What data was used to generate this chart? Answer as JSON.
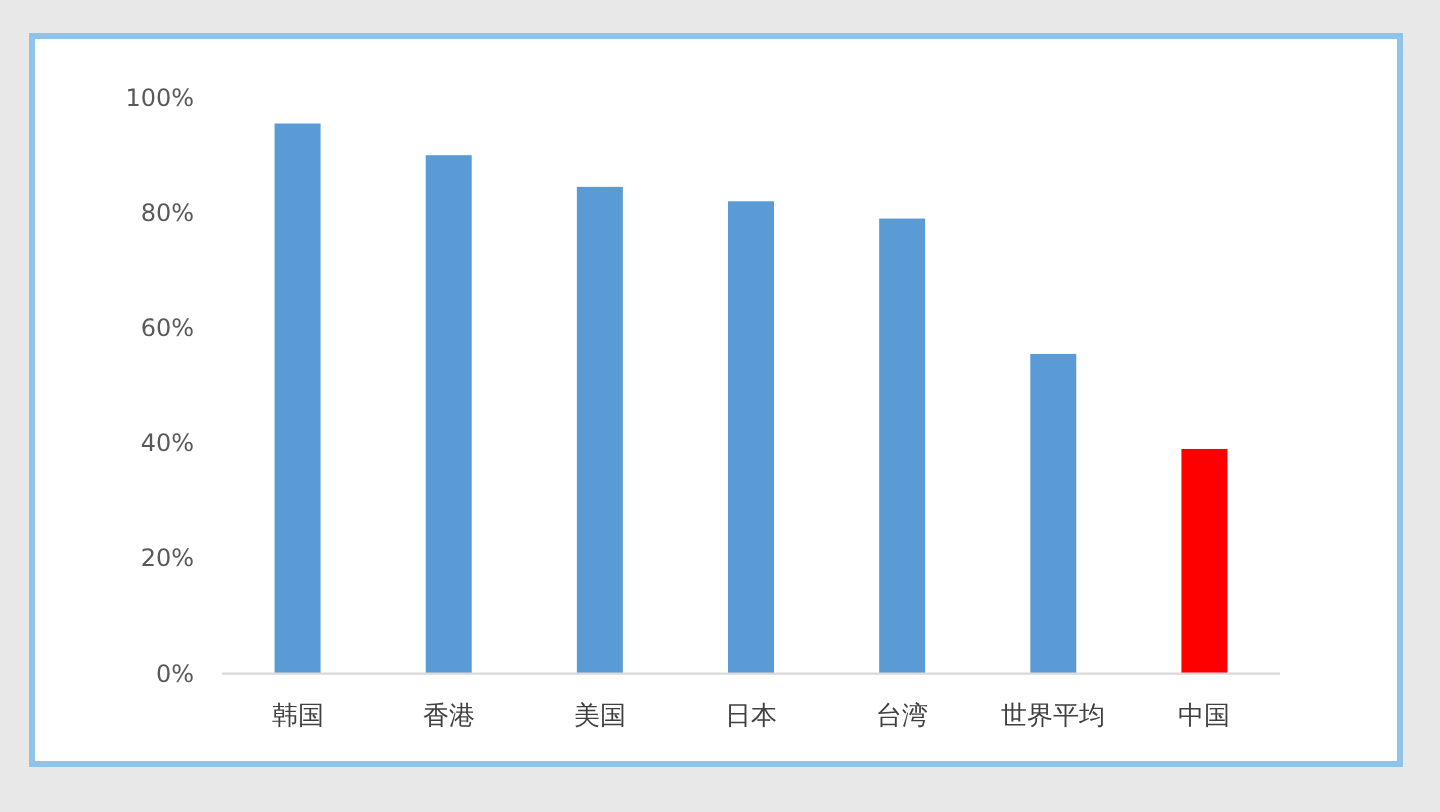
{
  "chart_data": {
    "type": "bar",
    "categories": [
      "韩国",
      "香港",
      "美国",
      "日本",
      "台湾",
      "世界平均",
      "中国"
    ],
    "values": [
      95.5,
      90,
      84.5,
      82,
      79,
      55.5,
      39
    ],
    "colors": [
      "#5b9bd5",
      "#5b9bd5",
      "#5b9bd5",
      "#5b9bd5",
      "#5b9bd5",
      "#5b9bd5",
      "#ff0000"
    ],
    "ylim": [
      0,
      100
    ],
    "yticks": [
      {
        "value": 0,
        "label": "0%"
      },
      {
        "value": 20,
        "label": "20%"
      },
      {
        "value": 40,
        "label": "40%"
      },
      {
        "value": 60,
        "label": "60%"
      },
      {
        "value": 80,
        "label": "80%"
      },
      {
        "value": 100,
        "label": "100%"
      }
    ],
    "grid": false
  }
}
